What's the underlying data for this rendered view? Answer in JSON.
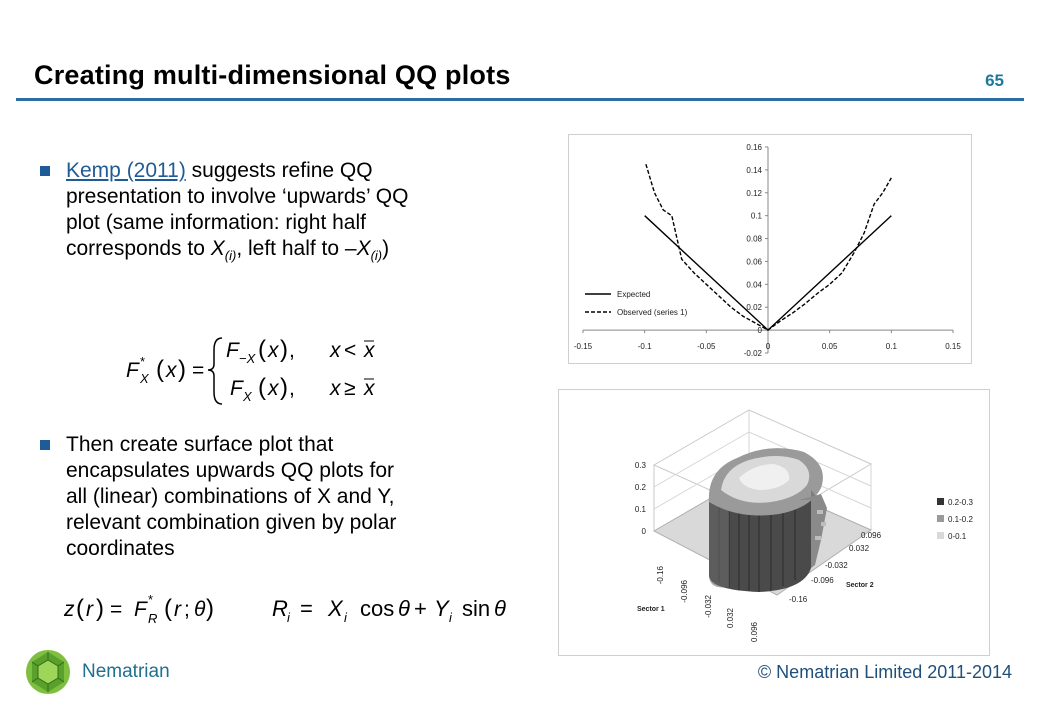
{
  "slide": {
    "title": "Creating multi-dimensional QQ plots",
    "number": "65",
    "footer_brand": "Nematrian",
    "footer_copyright": "© Nematrian Limited 2011-2014"
  },
  "bullets": {
    "b1_link": "Kemp (2011)",
    "b1_line1_rest": " suggests  refine QQ",
    "b1_line2": "presentation to involve ‘upwards’ QQ",
    "b1_line3": "plot (same information: right half",
    "b1_line4_a": "corresponds to ",
    "b1_x1": "X",
    "b1_sub1": "(i)",
    "b1_line4_b": ", left half to –",
    "b1_x2": "X",
    "b1_sub2": "(i)",
    "b1_line4_c": ")",
    "b2_line1": "Then create surface plot that",
    "b2_line2": "encapsulates upwards QQ plots for",
    "b2_line3": "all (linear) combinations of X and Y,",
    "b2_line4": "relevant combination given by polar",
    "b2_line5": "coordinates"
  },
  "chart_data": [
    {
      "type": "line",
      "title": "",
      "xlim": [
        -0.15,
        0.15
      ],
      "ylim": [
        -0.02,
        0.16
      ],
      "x_ticks": [
        "-0.15",
        "-0.1",
        "-0.05",
        "0",
        "0.05",
        "0.1",
        "0.15"
      ],
      "y_ticks": [
        "0.16",
        "0.14",
        "0.12",
        "0.1",
        "0.08",
        "0.06",
        "0.04",
        "0.02",
        "0",
        "-0.02"
      ],
      "legend": "bottom-left",
      "series": [
        {
          "name": "Expected",
          "style": "solid",
          "x": [
            -0.1,
            -0.05,
            0,
            0.05,
            0.1
          ],
          "y": [
            0.1,
            0.05,
            0,
            0.05,
            0.1
          ]
        },
        {
          "name": "Observed (series 1)",
          "style": "dashed",
          "x": [
            -0.099,
            -0.092,
            -0.085,
            -0.078,
            -0.07,
            -0.06,
            -0.05,
            -0.04,
            -0.03,
            -0.02,
            -0.01,
            0,
            0.01,
            0.02,
            0.03,
            0.04,
            0.05,
            0.06,
            0.07,
            0.078,
            0.086,
            0.093,
            0.1
          ],
          "y": [
            0.145,
            0.12,
            0.105,
            0.1,
            0.062,
            0.05,
            0.04,
            0.03,
            0.02,
            0.012,
            0.006,
            0,
            0.008,
            0.015,
            0.023,
            0.032,
            0.04,
            0.05,
            0.068,
            0.085,
            0.11,
            0.12,
            0.133
          ]
        }
      ]
    },
    {
      "type": "surface",
      "z_ticks": [
        "0.3",
        "0.2",
        "0.1",
        "0"
      ],
      "sector1_ticks": [
        "-0.16",
        "-0.096",
        "-0.032",
        "0.032",
        "0.096"
      ],
      "sector2_ticks": [
        "0.096",
        "0.032",
        "-0.032",
        "-0.096",
        "-0.16"
      ],
      "xlabel": "Sector 1",
      "ylabel": "Sector 2",
      "legend": "right",
      "series": [
        {
          "name": "0.2-0.3",
          "color": "#333333"
        },
        {
          "name": "0.1-0.2",
          "color": "#9a9a9a"
        },
        {
          "name": "0-0.1",
          "color": "#d9d9d9"
        }
      ]
    }
  ]
}
